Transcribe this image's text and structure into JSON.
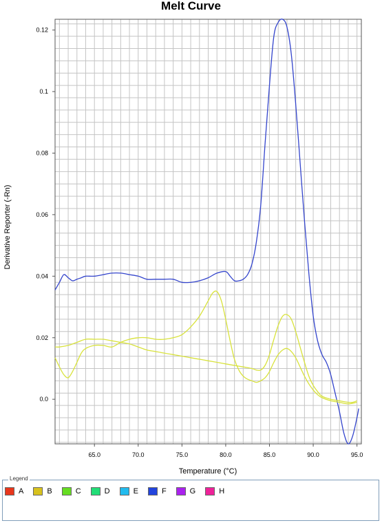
{
  "chart_data": {
    "type": "line",
    "title": "Melt Curve",
    "xlabel": "Temperature (°C)",
    "ylabel": "Derivative Reporter (-Rn)",
    "xlim": [
      60.5,
      95.5
    ],
    "ylim": [
      -0.0145,
      0.1235
    ],
    "x_ticks": [
      65,
      70,
      75,
      80,
      85,
      90,
      95
    ],
    "x_tick_labels": [
      "65.0",
      "70.0",
      "75.0",
      "80.0",
      "85.0",
      "90.0",
      "95.0"
    ],
    "y_ticks": [
      0.0,
      0.02,
      0.04,
      0.06,
      0.08,
      0.1,
      0.12
    ],
    "y_tick_labels": [
      "0.0",
      "0.02",
      "0.04",
      "0.06",
      "0.08",
      "0.1",
      "0.12"
    ],
    "grid": true,
    "series": [
      {
        "color": "#3344cc",
        "x": [
          60.5,
          61.0,
          61.5,
          62.0,
          62.5,
          63.0,
          63.5,
          64.0,
          65.0,
          66.0,
          67.0,
          68.0,
          69.0,
          70.0,
          71.0,
          72.0,
          73.0,
          74.0,
          75.0,
          76.0,
          77.0,
          78.0,
          79.0,
          80.0,
          80.5,
          81.0,
          81.5,
          82.0,
          82.5,
          83.0,
          83.5,
          84.0,
          84.5,
          85.0,
          85.5,
          86.0,
          86.5,
          87.0,
          87.5,
          88.0,
          88.5,
          89.0,
          89.5,
          90.0,
          90.5,
          91.0,
          91.5,
          92.0,
          92.5,
          93.0,
          93.5,
          94.0,
          94.5,
          95.0,
          95.2
        ],
        "y": [
          0.0355,
          0.038,
          0.0405,
          0.0395,
          0.0385,
          0.039,
          0.0395,
          0.04,
          0.04,
          0.0405,
          0.041,
          0.041,
          0.0405,
          0.04,
          0.039,
          0.039,
          0.039,
          0.039,
          0.038,
          0.038,
          0.0385,
          0.0395,
          0.041,
          0.0415,
          0.04,
          0.0385,
          0.0385,
          0.039,
          0.0405,
          0.044,
          0.051,
          0.063,
          0.083,
          0.102,
          0.118,
          0.1225,
          0.1235,
          0.121,
          0.112,
          0.096,
          0.077,
          0.058,
          0.041,
          0.027,
          0.019,
          0.0145,
          0.012,
          0.008,
          0.002,
          -0.004,
          -0.011,
          -0.0145,
          -0.012,
          -0.006,
          -0.003
        ]
      },
      {
        "color": "#d8e23a",
        "x": [
          60.5,
          61.0,
          61.5,
          62.0,
          62.5,
          63.0,
          63.5,
          64.0,
          65.0,
          66.0,
          67.0,
          68.0,
          69.0,
          70.0,
          71.0,
          72.0,
          73.0,
          74.0,
          75.0,
          76.0,
          77.0,
          78.0,
          78.5,
          79.0,
          79.5,
          80.0,
          80.5,
          81.0,
          81.5,
          82.0,
          82.5,
          83.0,
          83.5,
          84.0,
          84.5,
          85.0,
          85.5,
          86.0,
          86.5,
          87.0,
          87.5,
          88.0,
          88.5,
          89.0,
          89.5,
          90.0,
          90.5,
          91.0,
          92.0,
          93.0,
          94.0,
          95.0
        ],
        "y": [
          0.0135,
          0.0105,
          0.008,
          0.007,
          0.009,
          0.012,
          0.015,
          0.0165,
          0.0175,
          0.0175,
          0.017,
          0.0185,
          0.0195,
          0.02,
          0.02,
          0.0195,
          0.0195,
          0.02,
          0.021,
          0.0235,
          0.027,
          0.032,
          0.0345,
          0.035,
          0.032,
          0.026,
          0.019,
          0.013,
          0.0095,
          0.0075,
          0.0065,
          0.006,
          0.0055,
          0.006,
          0.007,
          0.009,
          0.012,
          0.0145,
          0.016,
          0.0165,
          0.0155,
          0.0135,
          0.0105,
          0.0075,
          0.005,
          0.003,
          0.0015,
          0.0005,
          -0.0005,
          -0.001,
          -0.0015,
          -0.001
        ]
      },
      {
        "color": "#d8e23a",
        "x": [
          60.5,
          61.0,
          62.0,
          63.0,
          64.0,
          65.0,
          66.0,
          67.0,
          68.0,
          69.0,
          70.0,
          71.0,
          72.0,
          73.0,
          74.0,
          75.0,
          76.0,
          77.0,
          78.0,
          79.0,
          80.0,
          81.0,
          82.0,
          83.0,
          83.5,
          84.0,
          84.5,
          85.0,
          85.5,
          86.0,
          86.5,
          87.0,
          87.5,
          88.0,
          88.5,
          89.0,
          89.5,
          90.0,
          90.5,
          91.0,
          92.0,
          93.0,
          94.0,
          94.5,
          95.0
        ],
        "y": [
          0.017,
          0.017,
          0.0175,
          0.0185,
          0.0195,
          0.0195,
          0.0195,
          0.019,
          0.0185,
          0.018,
          0.017,
          0.016,
          0.0155,
          0.015,
          0.0145,
          0.014,
          0.0135,
          0.013,
          0.0125,
          0.012,
          0.0115,
          0.011,
          0.0105,
          0.01,
          0.0095,
          0.0095,
          0.011,
          0.0145,
          0.0195,
          0.024,
          0.027,
          0.0275,
          0.026,
          0.022,
          0.017,
          0.012,
          0.0075,
          0.0045,
          0.0025,
          0.001,
          0.0,
          -0.0005,
          -0.001,
          -0.001,
          -0.0005
        ]
      }
    ]
  },
  "legend": {
    "title": "Legend",
    "items": [
      {
        "label": "A",
        "color": "#e8361c"
      },
      {
        "label": "B",
        "color": "#d8c21e"
      },
      {
        "label": "C",
        "color": "#66dd22"
      },
      {
        "label": "D",
        "color": "#22dd77"
      },
      {
        "label": "E",
        "color": "#22bbee"
      },
      {
        "label": "F",
        "color": "#2244dd"
      },
      {
        "label": "G",
        "color": "#aa22ee"
      },
      {
        "label": "H",
        "color": "#ee2299"
      }
    ]
  }
}
